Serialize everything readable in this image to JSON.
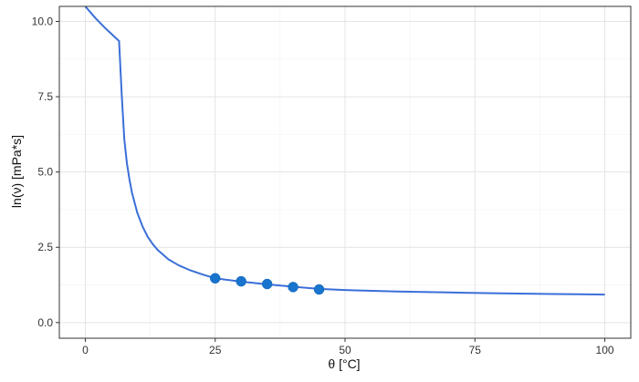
{
  "chart_data": {
    "type": "line",
    "title": "",
    "xlabel": "θ [°C]",
    "ylabel": "ln(ν) [mPa*s]",
    "xlim": [
      -5,
      105
    ],
    "ylim": [
      -0.52,
      10.5
    ],
    "x_ticks": [
      0,
      25,
      50,
      75,
      100
    ],
    "x_tick_labels": [
      "0",
      "25",
      "50",
      "75",
      "100"
    ],
    "y_ticks": [
      0,
      2.5,
      5,
      7.5,
      10
    ],
    "y_tick_labels": [
      "0.0",
      "2.5",
      "5.0",
      "7.5",
      "10.0"
    ],
    "grid": true,
    "legend": "none",
    "colors": {
      "line": "#3a6fd8",
      "points": "#1874cd",
      "grid": "#e4e4e4",
      "panel_border": "#333333"
    },
    "series": [
      {
        "type": "line",
        "x": [
          0,
          2,
          4,
          6.5,
          7,
          7.5,
          8,
          8.5,
          9,
          10,
          11,
          12,
          13,
          14,
          16,
          18,
          20,
          22.5,
          25,
          30,
          35,
          40,
          45,
          50,
          60,
          70,
          80,
          90,
          100
        ],
        "y": [
          10.5,
          10.1,
          9.75,
          9.35,
          7.6,
          6.1,
          5.3,
          4.75,
          4.3,
          3.65,
          3.2,
          2.85,
          2.6,
          2.4,
          2.1,
          1.9,
          1.75,
          1.6,
          1.47,
          1.36,
          1.27,
          1.19,
          1.12,
          1.08,
          1.03,
          1.0,
          0.97,
          0.95,
          0.93
        ]
      },
      {
        "type": "scatter",
        "x": [
          25,
          30,
          35,
          40,
          45
        ],
        "y": [
          1.47,
          1.37,
          1.28,
          1.18,
          1.1
        ]
      }
    ]
  }
}
